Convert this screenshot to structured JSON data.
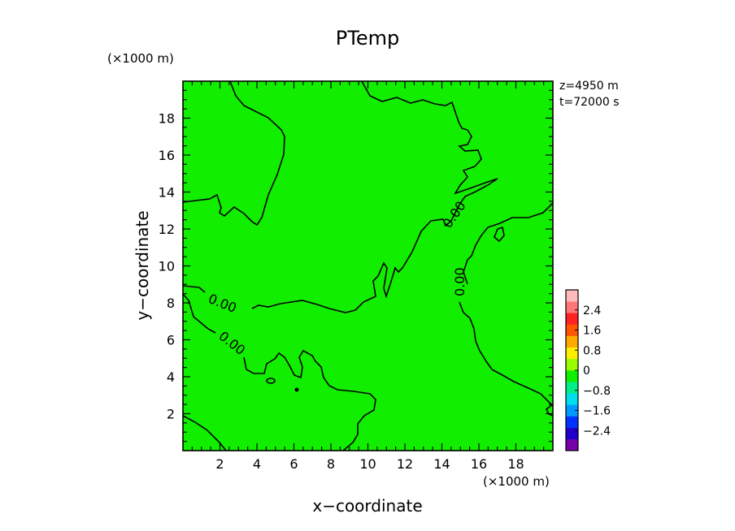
{
  "chart_data": {
    "type": "heatmap",
    "title": "PTemp",
    "xlabel": "x−coordinate",
    "ylabel": "y−coordinate",
    "x_unit": "(×1000 m)",
    "y_unit": "(×1000 m)",
    "xlim": [
      0,
      20
    ],
    "ylim": [
      0,
      20
    ],
    "x_ticks": [
      2,
      4,
      6,
      8,
      10,
      12,
      14,
      16,
      18
    ],
    "y_ticks": [
      2,
      4,
      6,
      8,
      10,
      12,
      14,
      16,
      18
    ],
    "x_tick_labels": [
      "2",
      "4",
      "6",
      "8",
      "10",
      "12",
      "14",
      "16",
      "18"
    ],
    "y_tick_labels": [
      "2",
      "4",
      "6",
      "8",
      "10",
      "12",
      "14",
      "16",
      "18"
    ],
    "annotations": [
      "z=4950 m",
      "t=72000 s"
    ],
    "contour_level": 0.0,
    "contour_labels": [
      "0.00",
      "0.00",
      "0.00",
      "0.00"
    ],
    "field_color": "#11ee00",
    "colorbar": {
      "ticks": [
        2.4,
        1.6,
        0.8,
        0,
        -0.8,
        -1.6,
        -2.4
      ],
      "tick_labels": [
        "2.4",
        "1.6",
        "0.8",
        "0",
        "−0.8",
        "−1.6",
        "−2.4"
      ],
      "range": [
        -3.2,
        3.2
      ],
      "colors": [
        "#7700aa",
        "#2200cc",
        "#0033ff",
        "#0099ff",
        "#00ddee",
        "#00ee88",
        "#11ee00",
        "#99ff00",
        "#ffee00",
        "#ffaa00",
        "#ff5500",
        "#ff2222",
        "#ff7777",
        "#ffbbbb"
      ]
    },
    "grid": false
  }
}
